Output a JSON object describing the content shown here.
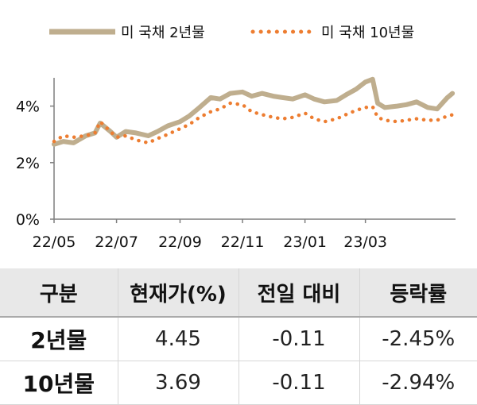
{
  "chart_data": {
    "type": "line",
    "title": "",
    "xlabel": "",
    "ylabel": "",
    "x_ticks": [
      "22/05",
      "22/07",
      "22/09",
      "22/11",
      "23/01",
      "23/03"
    ],
    "y_ticks": [
      "0%",
      "2%",
      "4%"
    ],
    "ylim": [
      0,
      5
    ],
    "legend_position": "top",
    "grid": false,
    "series": [
      {
        "name": "미 국채 2년물",
        "color": "#bfae8e",
        "style": "solid",
        "x": [
          "2022-05-01",
          "2022-05-10",
          "2022-05-20",
          "2022-06-01",
          "2022-06-10",
          "2022-06-15",
          "2022-06-25",
          "2022-07-01",
          "2022-07-10",
          "2022-07-20",
          "2022-08-01",
          "2022-08-10",
          "2022-08-20",
          "2022-09-01",
          "2022-09-10",
          "2022-09-20",
          "2022-10-01",
          "2022-10-10",
          "2022-10-20",
          "2022-11-01",
          "2022-11-10",
          "2022-11-20",
          "2022-12-01",
          "2022-12-10",
          "2022-12-20",
          "2023-01-01",
          "2023-01-10",
          "2023-01-20",
          "2023-02-01",
          "2023-02-10",
          "2023-02-20",
          "2023-03-01",
          "2023-03-08",
          "2023-03-13",
          "2023-03-20",
          "2023-04-01",
          "2023-04-10",
          "2023-04-20",
          "2023-05-01",
          "2023-05-10",
          "2023-05-20",
          "2023-05-25"
        ],
        "y": [
          2.65,
          2.75,
          2.7,
          2.95,
          3.05,
          3.4,
          3.1,
          2.9,
          3.1,
          3.05,
          2.95,
          3.1,
          3.3,
          3.45,
          3.65,
          3.95,
          4.3,
          4.25,
          4.45,
          4.5,
          4.35,
          4.45,
          4.35,
          4.3,
          4.25,
          4.4,
          4.25,
          4.15,
          4.2,
          4.4,
          4.6,
          4.85,
          4.95,
          4.1,
          3.95,
          4.0,
          4.05,
          4.15,
          3.95,
          3.9,
          4.3,
          4.45
        ]
      },
      {
        "name": "미 국채 10년물",
        "color": "#ed7d31",
        "style": "dotted",
        "x": [
          "2022-05-01",
          "2022-05-10",
          "2022-05-20",
          "2022-06-01",
          "2022-06-10",
          "2022-06-15",
          "2022-06-25",
          "2022-07-01",
          "2022-07-10",
          "2022-07-20",
          "2022-08-01",
          "2022-08-10",
          "2022-08-20",
          "2022-09-01",
          "2022-09-10",
          "2022-09-20",
          "2022-10-01",
          "2022-10-10",
          "2022-10-20",
          "2022-11-01",
          "2022-11-10",
          "2022-11-20",
          "2022-12-01",
          "2022-12-10",
          "2022-12-20",
          "2023-01-01",
          "2023-01-10",
          "2023-01-20",
          "2023-02-01",
          "2023-02-10",
          "2023-02-20",
          "2023-03-01",
          "2023-03-08",
          "2023-03-13",
          "2023-03-20",
          "2023-04-01",
          "2023-04-10",
          "2023-04-20",
          "2023-05-01",
          "2023-05-10",
          "2023-05-20",
          "2023-05-25"
        ],
        "y": [
          2.75,
          2.95,
          2.9,
          2.95,
          3.05,
          3.45,
          3.1,
          2.9,
          2.95,
          2.8,
          2.7,
          2.85,
          3.0,
          3.2,
          3.35,
          3.6,
          3.8,
          3.9,
          4.1,
          4.05,
          3.8,
          3.7,
          3.6,
          3.55,
          3.6,
          3.75,
          3.55,
          3.45,
          3.55,
          3.7,
          3.85,
          3.95,
          3.98,
          3.6,
          3.5,
          3.45,
          3.5,
          3.55,
          3.5,
          3.5,
          3.65,
          3.69
        ]
      }
    ]
  },
  "table": {
    "headers": [
      "구분",
      "현재가(%)",
      "전일 대비",
      "등락률"
    ],
    "rows": [
      {
        "label": "2년물",
        "current": "4.45",
        "change": "-0.11",
        "rate": "-2.45%"
      },
      {
        "label": "10년물",
        "current": "3.69",
        "change": "-0.11",
        "rate": "-2.94%"
      }
    ]
  }
}
